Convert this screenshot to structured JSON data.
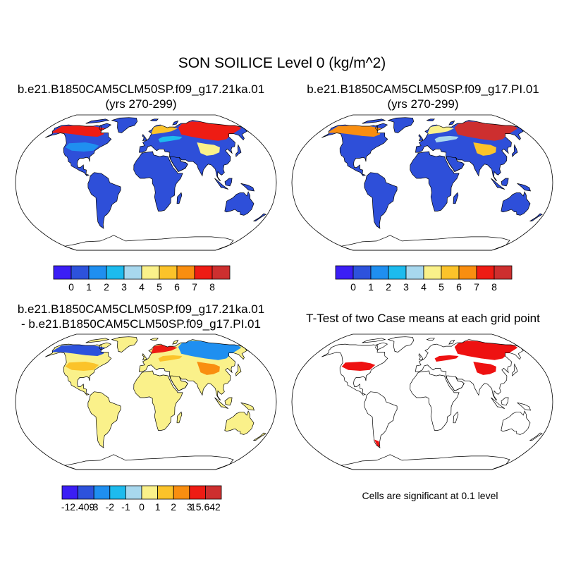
{
  "title": "SON SOILICE Level 0 (kg/m^2)",
  "colors": {
    "scale": [
      "#3b1ef5",
      "#2d52dc",
      "#1f8ff0",
      "#1dbbee",
      "#a8d8ee",
      "#faf18a",
      "#fbc32a",
      "#f98e10",
      "#ee1c14",
      "#cd2f2f"
    ],
    "land_base": "#2e4fd9",
    "diff_base": "#faf18a",
    "significant": "#ee1111"
  },
  "panels": [
    {
      "title_line1": "b.e21.B1850CAM5CLM50SP.f09_g17.21ka.01",
      "title_line2": "(yrs 270-299)"
    },
    {
      "title_line1": "b.e21.B1850CAM5CLM50SP.f09_g17.PI.01",
      "title_line2": "(yrs 270-299)"
    },
    {
      "title_line1": "b.e21.B1850CAM5CLM50SP.f09_g17.21ka.01",
      "title_line2": "- b.e21.B1850CAM5CLM50SP.f09_g17.PI.01"
    },
    {
      "title_line1": "T-Test of two Case means at each grid point",
      "title_line2": ""
    }
  ],
  "colorbars": [
    {
      "labels": [
        "0",
        "1",
        "2",
        "3",
        "4",
        "5",
        "6",
        "7",
        "8"
      ]
    },
    {
      "labels": [
        "0",
        "1",
        "2",
        "3",
        "4",
        "5",
        "6",
        "7",
        "8"
      ]
    },
    {
      "labels": [
        "-12.409",
        "-3",
        "-2",
        "-1",
        "0",
        "1",
        "2",
        "3",
        "15.642"
      ]
    }
  ],
  "note": "Cells are significant at 0.1 level",
  "chart_data": [
    {
      "type": "heatmap",
      "projection": "robinson",
      "units": "kg/m^2",
      "contour_levels": [
        0,
        1,
        2,
        3,
        4,
        5,
        6,
        7,
        8
      ],
      "description_values": {
        "tropics_and_midlatitudes": 0,
        "high_latitude_max": 8
      }
    },
    {
      "type": "heatmap",
      "projection": "robinson",
      "units": "kg/m^2",
      "contour_levels": [
        0,
        1,
        2,
        3,
        4,
        5,
        6,
        7,
        8
      ],
      "description_values": {
        "tropics_and_midlatitudes": 0,
        "high_latitude_max": 8
      }
    },
    {
      "type": "heatmap",
      "projection": "robinson",
      "units": "kg/m^2",
      "contour_levels": [
        -3,
        -2,
        -1,
        0,
        1,
        2,
        3
      ],
      "min": -12.409,
      "max": 15.642
    },
    {
      "type": "heatmap",
      "projection": "robinson",
      "significance_level": 0.1
    }
  ]
}
